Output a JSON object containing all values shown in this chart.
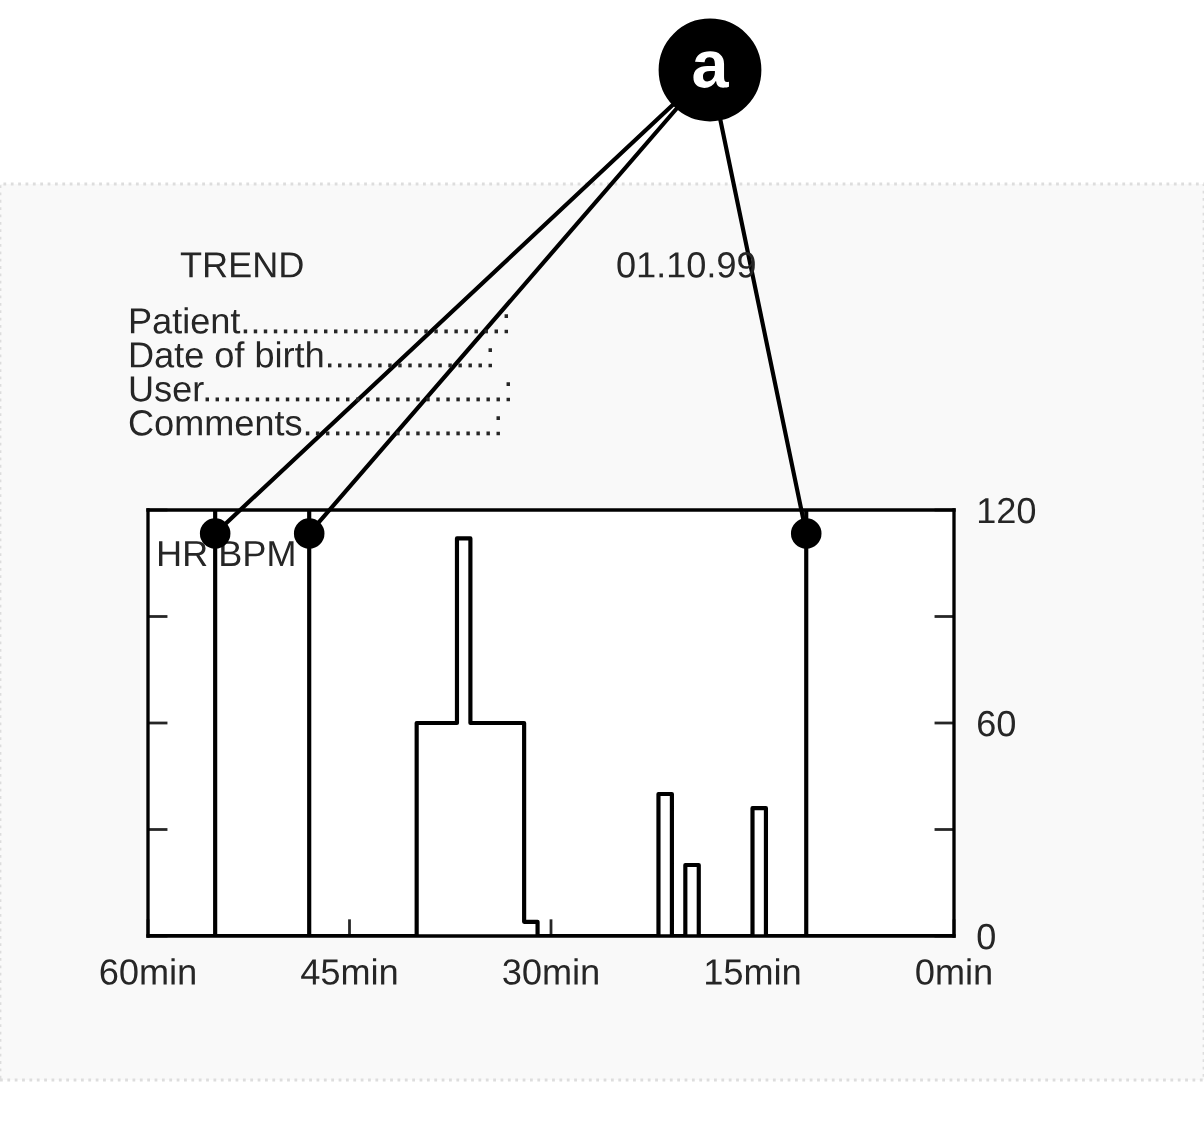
{
  "chart_data": {
    "type": "step",
    "title": "TREND",
    "subtitle": "01.10.99",
    "ylabel": "HR BPM",
    "x": [
      60,
      40,
      37,
      36,
      32,
      31,
      22,
      21,
      20,
      19,
      15,
      14,
      0
    ],
    "values": [
      0,
      60,
      112,
      60,
      4,
      0,
      40,
      0,
      20,
      0,
      36,
      0,
      0
    ],
    "color": "#000000",
    "xlim": [
      60,
      0
    ],
    "xticks": [
      {
        "value": 60,
        "label": "60min"
      },
      {
        "value": 45,
        "label": "45min"
      },
      {
        "value": 30,
        "label": "30min"
      },
      {
        "value": 15,
        "label": "15min"
      },
      {
        "value": 0,
        "label": "0min"
      }
    ],
    "ylim": [
      0,
      120
    ],
    "yticks": [
      0,
      {
        "value": 30,
        "label": null
      },
      60,
      {
        "value": 90,
        "label": null
      },
      120
    ],
    "ref_lines": [
      {
        "axis": "x",
        "value": 55,
        "color": "#000000"
      },
      {
        "axis": "x",
        "value": 48,
        "color": "#000000"
      },
      {
        "axis": "x",
        "value": 11,
        "color": "#000000"
      }
    ],
    "annotations": [
      "Patient..........................:",
      "Date of birth................:",
      "User..............................:",
      "Comments...................:",
      "a"
    ],
    "grid": false,
    "legend": false
  }
}
